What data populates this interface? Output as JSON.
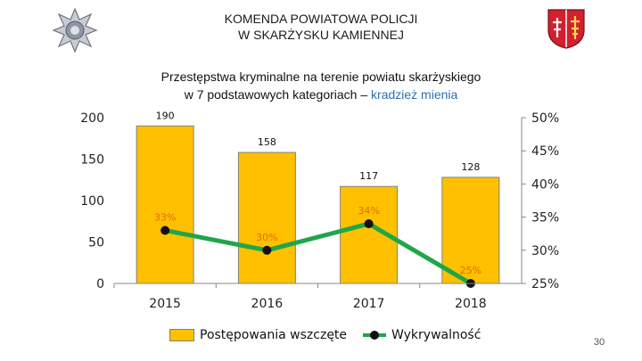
{
  "header": {
    "line1": "KOMENDA POWIATOWA POLICJI",
    "line2": "W SKARŻYSKU KAMIENNEJ"
  },
  "slide_title": {
    "line1": "Przestępstwa kryminalne na terenie powiatu skarżyskiego",
    "line2_prefix": "w 7 podstawowych kategoriach – ",
    "line2_highlight": "kradzież mienia"
  },
  "logos": {
    "left": "police-star-badge",
    "right": "coat-of-arms-shield"
  },
  "page_number": "30",
  "colors": {
    "bar": "#ffc000",
    "bar_border": "#7f7f7f",
    "line": "#1fa64a",
    "marker": "#111111",
    "bar_label": "#111111",
    "pct_label": "#e36c09",
    "highlight": "#2f6fb0"
  },
  "chart_data": {
    "type": "bar",
    "categories": [
      "2015",
      "2016",
      "2017",
      "2018"
    ],
    "series": [
      {
        "name": "Postępowania wszczęte",
        "type": "bar",
        "axis": "left",
        "values": [
          190,
          158,
          117,
          128
        ],
        "labels": [
          "190",
          "158",
          "117",
          "128"
        ]
      },
      {
        "name": "Wykrywalność",
        "type": "line",
        "axis": "right",
        "values": [
          33,
          30,
          34,
          25
        ],
        "labels": [
          "33%",
          "30%",
          "34%",
          "25%"
        ]
      }
    ],
    "y_left": {
      "min": 0,
      "max": 200,
      "ticks": [
        "0",
        "50",
        "100",
        "150",
        "200"
      ]
    },
    "y_right": {
      "min": 25,
      "max": 50,
      "ticks": [
        "25%",
        "30%",
        "35%",
        "40%",
        "45%",
        "50%"
      ]
    },
    "grid": false,
    "legend_position": "bottom"
  }
}
